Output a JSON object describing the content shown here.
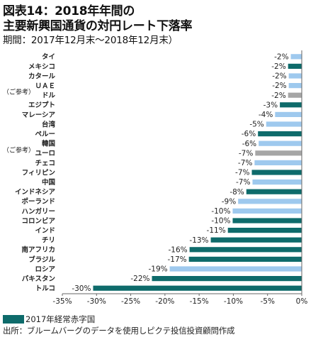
{
  "title": {
    "line1": "図表14：2018年年間の",
    "line2": "主要新興国通貨の対円レート下落率",
    "line3": "期間：2017年12月末～2018年12月末）"
  },
  "legend": {
    "label": "2017年経常赤字国",
    "color": "#0e6b6b"
  },
  "source": "出所：ブルームバーグのデータを使用しピクテ投信投資顧問作成",
  "colors": {
    "deficit": "#0e6b6b",
    "surplus": "#9ec9ee",
    "reference": "#a6a6a6"
  },
  "chart_data": {
    "type": "bar",
    "orientation": "horizontal",
    "xlim": [
      -35,
      0
    ],
    "xticks": [
      "-35%",
      "-30%",
      "-25%",
      "-20%",
      "-15%",
      "-10%",
      "-5%",
      "0%"
    ],
    "grid": false,
    "categories": [
      {
        "name": "タイ",
        "value": -1.6,
        "label": "-2%",
        "group": "surplus"
      },
      {
        "name": "メキシコ",
        "value": -2.0,
        "label": "-2%",
        "group": "deficit"
      },
      {
        "name": "カタール",
        "value": -1.9,
        "label": "-2%",
        "group": "surplus"
      },
      {
        "name": "ＵＡＥ",
        "value": -1.9,
        "label": "-2%",
        "group": "surplus"
      },
      {
        "name": "ドル",
        "prefix": "（ご参考）",
        "value": -2.0,
        "label": "-2%",
        "group": "reference"
      },
      {
        "name": "エジプト",
        "value": -3.2,
        "label": "-3%",
        "group": "deficit"
      },
      {
        "name": "マレーシア",
        "value": -3.9,
        "label": "-4%",
        "group": "surplus"
      },
      {
        "name": "台湾",
        "value": -5.2,
        "label": "-5%",
        "group": "surplus"
      },
      {
        "name": "ペルー",
        "value": -6.4,
        "label": "-6%",
        "group": "deficit"
      },
      {
        "name": "韓国",
        "value": -6.3,
        "label": "-6%",
        "group": "surplus"
      },
      {
        "name": "ユーロ",
        "prefix": "（ご参考）",
        "value": -6.8,
        "label": "-7%",
        "group": "reference"
      },
      {
        "name": "チェコ",
        "value": -6.9,
        "label": "-7%",
        "group": "surplus"
      },
      {
        "name": "フィリピン",
        "value": -7.3,
        "label": "-7%",
        "group": "deficit"
      },
      {
        "name": "中国",
        "value": -7.2,
        "label": "-7%",
        "group": "surplus"
      },
      {
        "name": "インドネシア",
        "value": -8.1,
        "label": "-8%",
        "group": "deficit"
      },
      {
        "name": "ポーランド",
        "value": -9.3,
        "label": "-9%",
        "group": "surplus"
      },
      {
        "name": "ハンガリー",
        "value": -10.1,
        "label": "-10%",
        "group": "surplus"
      },
      {
        "name": "コロンビア",
        "value": -10.1,
        "label": "-10%",
        "group": "deficit"
      },
      {
        "name": "インド",
        "value": -10.8,
        "label": "-11%",
        "group": "deficit"
      },
      {
        "name": "チリ",
        "value": -13.3,
        "label": "-13%",
        "group": "deficit"
      },
      {
        "name": "南アフリカ",
        "value": -16.4,
        "label": "-16%",
        "group": "deficit"
      },
      {
        "name": "ブラジル",
        "value": -16.5,
        "label": "-17%",
        "group": "deficit"
      },
      {
        "name": "ロシア",
        "value": -19.3,
        "label": "-19%",
        "group": "surplus"
      },
      {
        "name": "パキスタン",
        "value": -21.9,
        "label": "-22%",
        "group": "deficit"
      },
      {
        "name": "トルコ",
        "value": -30.5,
        "label": "-30%",
        "group": "deficit"
      }
    ]
  }
}
